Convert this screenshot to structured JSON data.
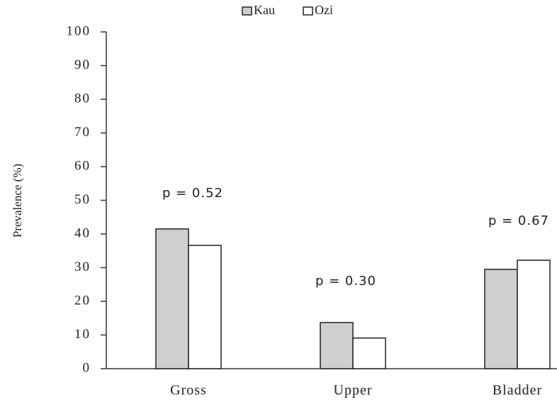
{
  "chart_data": {
    "type": "bar",
    "y_label": "Prevalence (%)",
    "categories": [
      "Gross",
      "Upper",
      "Bladder"
    ],
    "series": [
      {
        "name": "Kau",
        "color": "#cfcfcf",
        "values": [
          41.5,
          13.7,
          29.5
        ]
      },
      {
        "name": "Ozi",
        "color": "#ffffff",
        "values": [
          36.6,
          9.1,
          32.2
        ]
      }
    ],
    "annotations": [
      "p = 0.52",
      "p = 0.30",
      "p = 0.67"
    ],
    "ylim": [
      0,
      100
    ],
    "yticks": [
      0,
      10,
      20,
      30,
      40,
      50,
      60,
      70,
      80,
      90,
      100
    ],
    "grid": false,
    "legend": "top"
  }
}
